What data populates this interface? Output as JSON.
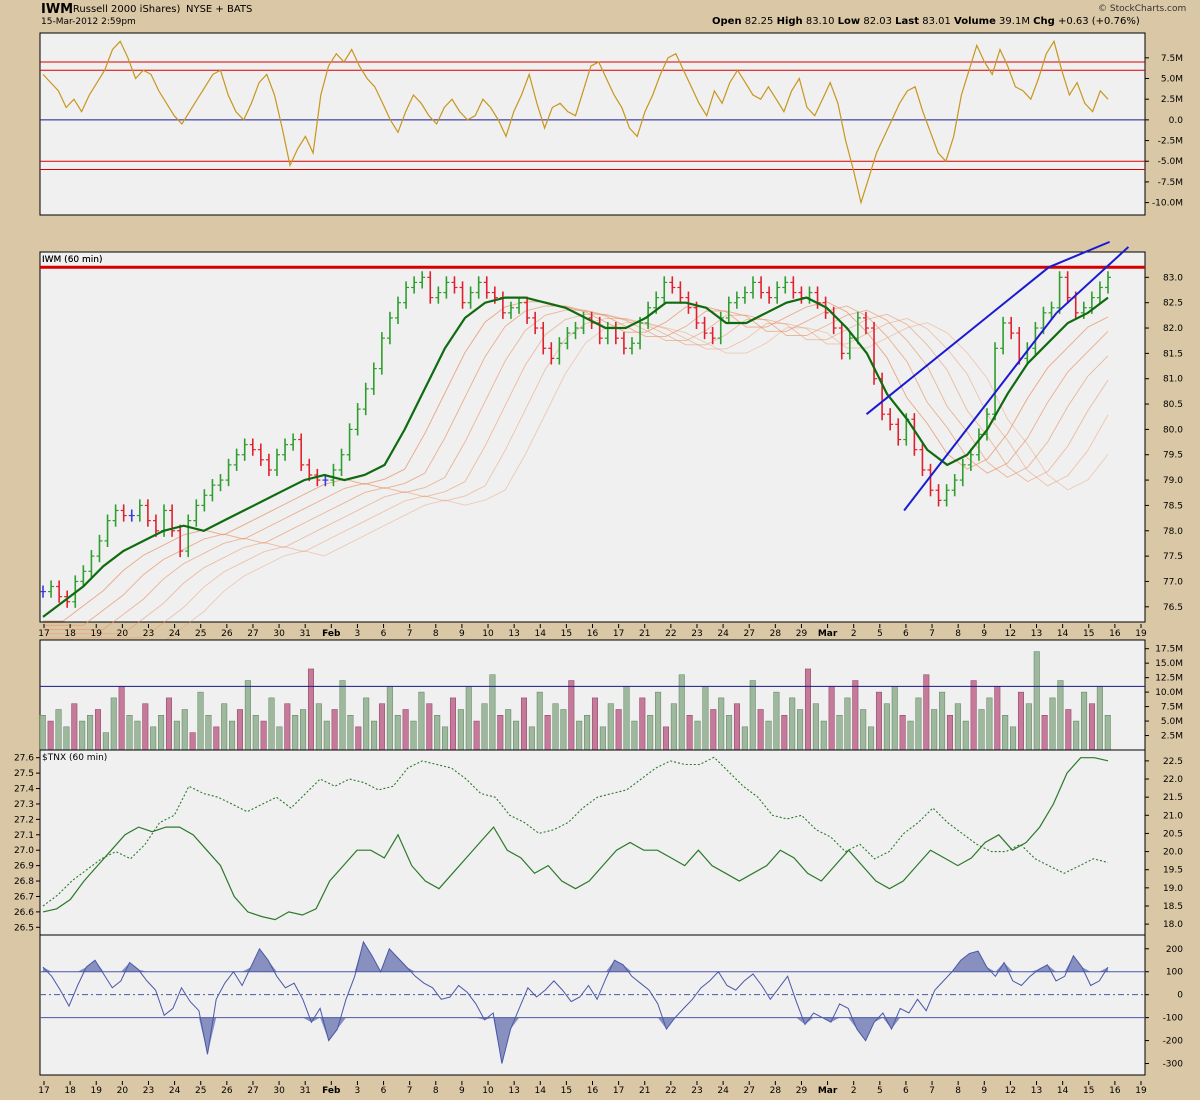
{
  "header": {
    "symbol": "IWM",
    "name": "(Russell 2000 iShares)",
    "exchange": "NYSE + BATS",
    "datetime": "15-Mar-2012 2:59pm",
    "watermark": "© StockCharts.com",
    "quote": {
      "open_label": "Open",
      "open": "82.25",
      "high_label": "High",
      "high": "83.10",
      "low_label": "Low",
      "low": "82.03",
      "last_label": "Last",
      "last": "83.01",
      "volume_label": "Volume",
      "volume": "39.1M",
      "chg_label": "Chg",
      "chg": "+0.63 (+0.76%)"
    }
  },
  "colors": {
    "background": "#d9c7a5",
    "panel": "#f0f0f0",
    "up_bar": "#2e9e2e",
    "down_bar": "#e0202e",
    "neutral_bar": "#3b3bd8",
    "oscillator": "#c8961e",
    "ema_main": "#0f6b0f",
    "ribbon": "#e89a70",
    "resistance": "#d60000",
    "trendline": "#1a1ad2",
    "vol_up": "#9db89d",
    "vol_down": "#c47a98",
    "tnx": "#2a7a2a",
    "cci": "#4a58a8",
    "cci_fill": "#8890c0"
  },
  "x_axis_labels": [
    "17",
    "18",
    "19",
    "20",
    "23",
    "24",
    "25",
    "26",
    "27",
    "30",
    "31",
    "Feb",
    "3",
    "6",
    "7",
    "8",
    "9",
    "10",
    "13",
    "14",
    "15",
    "16",
    "17",
    "21",
    "22",
    "23",
    "24",
    "27",
    "28",
    "29",
    "Mar",
    "2",
    "5",
    "6",
    "7",
    "8",
    "9",
    "12",
    "13",
    "14",
    "15",
    "16",
    "19"
  ],
  "chart_data": [
    {
      "type": "line",
      "panel": "money-flow-oscillator",
      "ylim": [
        -11.5,
        10.5
      ],
      "y_ticks": [
        "7.5M",
        "5.0M",
        "2.5M",
        "0.0",
        "-2.5M",
        "-5.0M",
        "-7.5M",
        "-10.0M"
      ],
      "reference_lines": [
        7.0,
        6.0,
        0.0,
        -5.0,
        -6.0
      ],
      "series": [
        {
          "values": [
            5.5,
            4.5,
            3.5,
            1.5,
            2.5,
            1.0,
            3.0,
            4.5,
            6.0,
            8.5,
            9.5,
            7.5,
            5.0,
            6.0,
            5.5,
            3.5,
            2.0,
            0.5,
            -0.5,
            1.0,
            2.5,
            4.0,
            5.5,
            6.0,
            3.0,
            1.0,
            0.0,
            2.0,
            4.5,
            5.5,
            3.0,
            -1.0,
            -5.5,
            -3.5,
            -2.0,
            -4.0,
            3.0,
            6.5,
            8.0,
            7.0,
            8.5,
            6.5,
            5.0,
            4.0,
            2.0,
            0.0,
            -1.5,
            1.0,
            3.0,
            2.0,
            0.5,
            -0.5,
            1.5,
            2.5,
            1.0,
            0.0,
            0.5,
            2.5,
            1.5,
            0.0,
            -2.0,
            1.0,
            3.0,
            5.5,
            2.0,
            -1.0,
            1.5,
            2.0,
            1.0,
            0.5,
            3.5,
            6.5,
            7.0,
            5.0,
            3.0,
            1.5,
            -1.0,
            -2.0,
            1.0,
            3.0,
            5.5,
            7.5,
            8.0,
            6.0,
            4.0,
            2.0,
            0.5,
            3.5,
            2.0,
            4.5,
            6.0,
            4.5,
            3.0,
            2.5,
            4.0,
            2.5,
            1.0,
            3.5,
            5.0,
            1.5,
            0.5,
            2.5,
            4.5,
            2.0,
            -2.5,
            -6.0,
            -10.0,
            -7.0,
            -4.0,
            -2.0,
            0.0,
            2.0,
            3.5,
            4.0,
            1.0,
            -1.5,
            -4.0,
            -5.0,
            -2.0,
            3.0,
            6.0,
            9.0,
            7.0,
            5.5,
            8.5,
            6.5,
            4.0,
            3.5,
            2.5,
            5.0,
            8.0,
            9.5,
            6.0,
            3.0,
            4.5,
            2.0,
            1.0,
            3.5,
            2.5
          ]
        }
      ],
      "yaxis_position": "right"
    },
    {
      "type": "ohlc",
      "panel": "price",
      "title": "IWM (60 min)",
      "ylim": [
        76.2,
        83.5
      ],
      "y_ticks": [
        "83.0",
        "82.5",
        "82.0",
        "81.5",
        "81.0",
        "80.5",
        "80.0",
        "79.5",
        "79.0",
        "78.5",
        "78.0",
        "77.5",
        "77.0",
        "76.5"
      ],
      "resistance_level": 83.2,
      "close_values": [
        76.8,
        76.9,
        76.7,
        76.6,
        77.0,
        77.2,
        77.5,
        77.8,
        78.2,
        78.4,
        78.3,
        78.3,
        78.5,
        78.2,
        78.0,
        78.4,
        78.0,
        77.6,
        78.2,
        78.5,
        78.7,
        78.9,
        79.0,
        79.3,
        79.5,
        79.7,
        79.6,
        79.4,
        79.2,
        79.5,
        79.7,
        79.8,
        79.3,
        79.1,
        79.0,
        79.0,
        79.2,
        79.5,
        80.0,
        80.4,
        80.8,
        81.2,
        81.8,
        82.2,
        82.5,
        82.8,
        82.9,
        83.0,
        82.6,
        82.7,
        82.9,
        82.8,
        82.5,
        82.7,
        82.9,
        82.7,
        82.6,
        82.3,
        82.4,
        82.5,
        82.2,
        82.0,
        81.6,
        81.4,
        81.7,
        81.9,
        82.0,
        82.2,
        82.1,
        81.8,
        82.0,
        81.8,
        81.6,
        81.7,
        82.1,
        82.4,
        82.6,
        82.9,
        82.8,
        82.6,
        82.4,
        82.1,
        81.9,
        81.8,
        82.2,
        82.5,
        82.6,
        82.7,
        82.9,
        82.7,
        82.6,
        82.8,
        82.9,
        82.7,
        82.6,
        82.7,
        82.5,
        82.3,
        82.0,
        81.5,
        81.8,
        82.2,
        82.0,
        81.0,
        80.3,
        80.1,
        79.8,
        80.2,
        79.6,
        79.2,
        78.8,
        78.6,
        78.8,
        79.0,
        79.3,
        79.5,
        79.9,
        80.3,
        81.6,
        82.1,
        81.9,
        81.4,
        81.6,
        82.0,
        82.3,
        82.4,
        83.0,
        82.6,
        82.3,
        82.4,
        82.6,
        82.8,
        83.0
      ],
      "ema_main_values": [
        76.3,
        76.6,
        76.9,
        77.3,
        77.6,
        77.8,
        78.0,
        78.1,
        78.0,
        78.2,
        78.4,
        78.6,
        78.8,
        79.0,
        79.1,
        79.0,
        79.1,
        79.3,
        80.0,
        80.8,
        81.6,
        82.2,
        82.5,
        82.6,
        82.6,
        82.5,
        82.4,
        82.2,
        82.0,
        82.0,
        82.2,
        82.5,
        82.5,
        82.4,
        82.1,
        82.1,
        82.3,
        82.5,
        82.6,
        82.4,
        82.0,
        81.5,
        80.7,
        80.2,
        79.6,
        79.3,
        79.5,
        80.0,
        80.7,
        81.3,
        81.7,
        82.1,
        82.3,
        82.6
      ],
      "trendlines": [
        {
          "points": [
            [
              0.748,
              80.3
            ],
            [
              0.913,
              83.2
            ]
          ]
        },
        {
          "points": [
            [
              0.782,
              78.4
            ],
            [
              0.92,
              82.3
            ]
          ]
        },
        {
          "points": [
            [
              0.913,
              83.2
            ],
            [
              0.968,
              83.7
            ]
          ]
        },
        {
          "points": [
            [
              0.92,
              82.3
            ],
            [
              0.985,
              83.6
            ]
          ]
        }
      ],
      "yaxis_position": "right"
    },
    {
      "type": "bar",
      "panel": "volume",
      "ylim": [
        0,
        19
      ],
      "y_ticks": [
        "17.5M",
        "15.0M",
        "12.5M",
        "10.0M",
        "7.5M",
        "5.0M",
        "2.5M"
      ],
      "reference_line": 11.0,
      "values": [
        6,
        5,
        7,
        4,
        8,
        5,
        6,
        7,
        3,
        9,
        11,
        6,
        5,
        8,
        4,
        6,
        9,
        5,
        7,
        3,
        10,
        6,
        4,
        8,
        5,
        7,
        12,
        6,
        5,
        9,
        4,
        8,
        6,
        7,
        14,
        8,
        5,
        7,
        12,
        6,
        4,
        9,
        5,
        8,
        11,
        6,
        7,
        5,
        10,
        8,
        6,
        4,
        9,
        7,
        11,
        5,
        8,
        13,
        6,
        7,
        5,
        9,
        4,
        10,
        6,
        8,
        7,
        12,
        5,
        6,
        9,
        4,
        8,
        7,
        11,
        5,
        9,
        6,
        10,
        4,
        8,
        13,
        6,
        5,
        11,
        7,
        9,
        6,
        8,
        4,
        12,
        7,
        5,
        10,
        6,
        9,
        7,
        14,
        8,
        5,
        11,
        6,
        9,
        12,
        7,
        4,
        10,
        8,
        11,
        6,
        5,
        9,
        13,
        7,
        10,
        6,
        8,
        5,
        12,
        7,
        9,
        11,
        6,
        4,
        10,
        8,
        17,
        6,
        9,
        12,
        7,
        5,
        10,
        8,
        11,
        6
      ],
      "yaxis_position": "right"
    },
    {
      "type": "line",
      "panel": "tnx",
      "title": "$TNX (60 min)",
      "left_ticks": [
        "27.6",
        "27.5",
        "27.4",
        "27.3",
        "27.2",
        "27.1",
        "27.0",
        "26.9",
        "26.8",
        "26.7",
        "26.6",
        "26.5"
      ],
      "left_range": [
        26.45,
        27.65
      ],
      "right_ticks": [
        "22.5",
        "22.0",
        "21.5",
        "21.0",
        "20.5",
        "20.0",
        "19.5",
        "19.0",
        "18.5",
        "18.0"
      ],
      "right_range": [
        17.7,
        22.8
      ],
      "series": [
        {
          "style": "solid",
          "axis": "left",
          "values": [
            26.6,
            26.62,
            26.68,
            26.8,
            26.9,
            27.0,
            27.1,
            27.15,
            27.12,
            27.15,
            27.15,
            27.1,
            27.0,
            26.9,
            26.7,
            26.6,
            26.57,
            26.55,
            26.6,
            26.58,
            26.62,
            26.8,
            26.9,
            27.0,
            27.0,
            26.95,
            27.1,
            26.9,
            26.8,
            26.75,
            26.85,
            26.95,
            27.05,
            27.15,
            27.0,
            26.95,
            26.85,
            26.9,
            26.8,
            26.75,
            26.8,
            26.9,
            27.0,
            27.05,
            27.0,
            27.0,
            26.95,
            26.9,
            27.0,
            26.9,
            26.85,
            26.8,
            26.85,
            26.9,
            27.0,
            26.95,
            26.85,
            26.8,
            26.9,
            27.0,
            26.9,
            26.8,
            26.75,
            26.8,
            26.9,
            27.0,
            26.95,
            26.9,
            26.95,
            27.05,
            27.1,
            27.0,
            27.05,
            27.15,
            27.3,
            27.5,
            27.6,
            27.6,
            27.58
          ]
        },
        {
          "style": "dotted",
          "axis": "right",
          "values": [
            18.5,
            18.8,
            19.2,
            19.5,
            19.8,
            20.0,
            19.8,
            20.2,
            20.8,
            21.0,
            21.8,
            21.6,
            21.5,
            21.3,
            21.1,
            21.3,
            21.5,
            21.2,
            21.6,
            22.0,
            21.8,
            22.0,
            21.9,
            21.7,
            21.8,
            22.3,
            22.5,
            22.4,
            22.3,
            22.0,
            21.6,
            21.5,
            21.0,
            20.8,
            20.5,
            20.6,
            20.8,
            21.2,
            21.5,
            21.6,
            21.7,
            22.0,
            22.3,
            22.5,
            22.4,
            22.4,
            22.6,
            22.2,
            21.8,
            21.5,
            21.0,
            20.9,
            21.0,
            20.6,
            20.4,
            20.0,
            20.2,
            19.8,
            20.0,
            20.5,
            20.8,
            21.2,
            20.8,
            20.5,
            20.2,
            20.0,
            20.0,
            20.2,
            19.8,
            19.6,
            19.4,
            19.6,
            19.8,
            19.7
          ]
        }
      ]
    },
    {
      "type": "area",
      "panel": "cci",
      "ylim": [
        -350,
        260
      ],
      "y_ticks": [
        "200",
        "100",
        "0",
        "-100",
        "-200",
        "-300"
      ],
      "reference_lines": [
        100,
        0,
        -100
      ],
      "series": [
        {
          "values": [
            120,
            80,
            20,
            -50,
            40,
            120,
            150,
            90,
            30,
            60,
            140,
            110,
            60,
            20,
            -90,
            -60,
            30,
            -30,
            -70,
            -260,
            -20,
            50,
            100,
            40,
            120,
            200,
            150,
            80,
            30,
            50,
            -20,
            -120,
            -60,
            -200,
            -150,
            -20,
            80,
            230,
            170,
            100,
            200,
            160,
            120,
            80,
            50,
            30,
            -20,
            -10,
            40,
            10,
            -40,
            -110,
            -80,
            -300,
            -150,
            -60,
            30,
            -10,
            20,
            60,
            20,
            -30,
            -10,
            40,
            -20,
            70,
            150,
            130,
            80,
            50,
            20,
            -40,
            -150,
            -100,
            -60,
            -20,
            30,
            60,
            100,
            40,
            20,
            60,
            90,
            40,
            -20,
            30,
            80,
            -30,
            -130,
            -80,
            -100,
            -120,
            -40,
            -60,
            -150,
            -200,
            -120,
            -80,
            -150,
            -60,
            -80,
            -20,
            -70,
            20,
            60,
            100,
            150,
            180,
            190,
            120,
            80,
            140,
            60,
            40,
            80,
            110,
            130,
            60,
            80,
            170,
            120,
            40,
            60,
            120
          ]
        }
      ],
      "yaxis_position": "right"
    }
  ]
}
